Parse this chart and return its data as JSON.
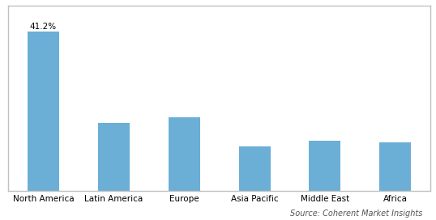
{
  "categories": [
    "North America",
    "Latin America",
    "Europe",
    "Asia Pacific",
    "Middle East",
    "Africa"
  ],
  "values": [
    41.2,
    17.5,
    19.0,
    11.5,
    13.0,
    12.5
  ],
  "bar_color": "#6baed6",
  "bar_label": "41.2%",
  "bar_label_index": 0,
  "ylim": [
    0,
    48
  ],
  "yticks": [],
  "source_text": "Source: Coherent Market Insights",
  "label_fontsize": 7.5,
  "tick_fontsize": 7.5,
  "source_fontsize": 7.0,
  "background_color": "#ffffff",
  "bar_width": 0.45,
  "border_color": "#c0c0c0"
}
